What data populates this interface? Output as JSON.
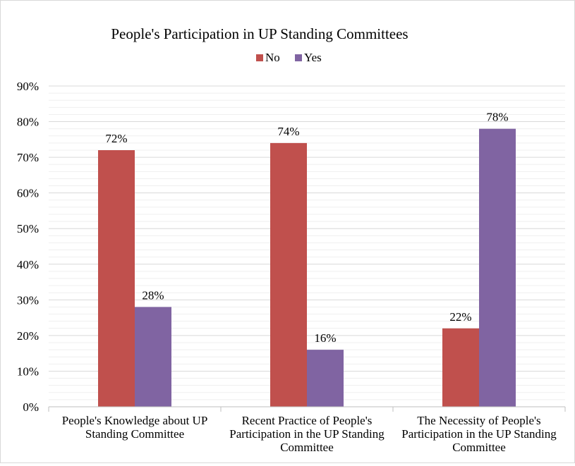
{
  "chart_data": {
    "type": "bar",
    "title": "People's Participation in UP Standing Committees",
    "categories": [
      [
        "People's Knowledge about UP",
        "Standing Committee"
      ],
      [
        "Recent Practice of People's",
        "Participation in the UP Standing",
        "Committee"
      ],
      [
        "The Necessity of People's",
        "Participation in the UP Standing",
        "Committee"
      ]
    ],
    "series": [
      {
        "name": "No",
        "color": "#c0504d",
        "values": [
          72,
          74,
          22
        ],
        "labels": [
          "72%",
          "74%",
          "22%"
        ]
      },
      {
        "name": "Yes",
        "color": "#8064a2",
        "values": [
          28,
          16,
          78
        ],
        "labels": [
          "28%",
          "16%",
          "78%"
        ]
      }
    ],
    "ylim": [
      0,
      90
    ],
    "yticks": [
      "0%",
      "10%",
      "20%",
      "30%",
      "40%",
      "50%",
      "60%",
      "70%",
      "80%",
      "90%"
    ],
    "ytick_values": [
      0,
      10,
      20,
      30,
      40,
      50,
      60,
      70,
      80,
      90
    ],
    "minor_gridlines": true,
    "legend_position": "top-center",
    "xlabel": "",
    "ylabel": ""
  }
}
